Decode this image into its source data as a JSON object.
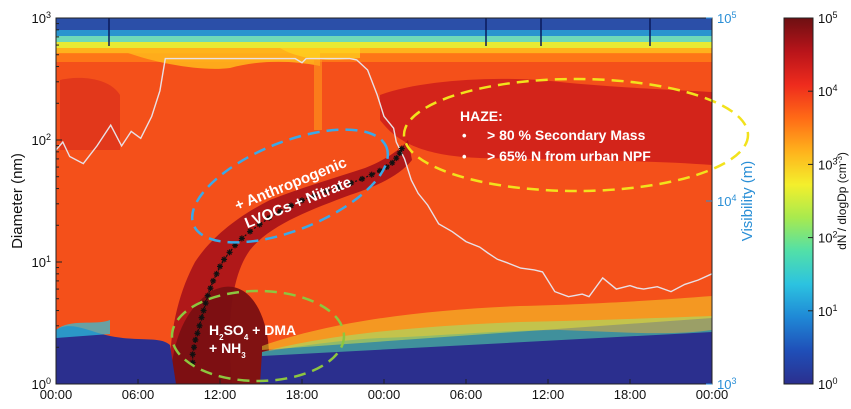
{
  "chart_data": {
    "type": "heatmap",
    "title": "",
    "xlabel": "",
    "ylabel": "Diameter  (nm)",
    "y2label": "Visibility (m)",
    "colorbar_label_html": "dN / dlogDp (cm<tspan baseline-shift=\"super\" font-size=\"8\">-3</tspan>)",
    "x_ticks": [
      "00:00",
      "06:00",
      "12:00",
      "18:00",
      "00:00",
      "06:00",
      "12:00",
      "18:00",
      "00:00"
    ],
    "x_range_hours": [
      0,
      48
    ],
    "y_scale": "log",
    "y_range_nm": [
      1,
      1000
    ],
    "y_ticks": [
      {
        "base": "10",
        "exp": "0",
        "value": 1
      },
      {
        "base": "10",
        "exp": "1",
        "value": 10
      },
      {
        "base": "10",
        "exp": "2",
        "value": 100
      },
      {
        "base": "10",
        "exp": "3",
        "value": 1000
      }
    ],
    "y2_scale": "log",
    "y2_range_m": [
      1000,
      100000
    ],
    "y2_ticks": [
      {
        "base": "10",
        "exp": "3",
        "value": 1000
      },
      {
        "base": "10",
        "exp": "4",
        "value": 10000
      },
      {
        "base": "10",
        "exp": "5",
        "value": 100000
      }
    ],
    "colorbar_scale": "log",
    "colorbar_range": [
      1,
      100000
    ],
    "colorbar_ticks": [
      {
        "base": "10",
        "exp": "0"
      },
      {
        "base": "10",
        "exp": "1"
      },
      {
        "base": "10",
        "exp": "2"
      },
      {
        "base": "10",
        "exp": "3"
      },
      {
        "base": "10",
        "exp": "4"
      },
      {
        "base": "10",
        "exp": "5"
      }
    ],
    "colormap": [
      "#2b2f8e",
      "#1f4fb8",
      "#1f88d6",
      "#2cc3e0",
      "#52e0a8",
      "#a8ea4e",
      "#f4ef2c",
      "#ffb21c",
      "#ff6a16",
      "#ee2b1d",
      "#b8141a",
      "#6e0f12"
    ],
    "visibility_color": "#e8e0e6",
    "growth_marker_color": "#111111",
    "visibility_series": {
      "hours": [
        0,
        0.5,
        1,
        2,
        3,
        4,
        4.8,
        5.5,
        6.2,
        7,
        7.6,
        8,
        8.5,
        9,
        10,
        11,
        12,
        13,
        14,
        15,
        16,
        17,
        17.5,
        18,
        18.3,
        19,
        20,
        21,
        21.5,
        22,
        22.8,
        23.5,
        24,
        24.7,
        24.9,
        25.5,
        26,
        26.5,
        27.2,
        28,
        29,
        30,
        31,
        31.6,
        32.3,
        33,
        34,
        35,
        35.6,
        36.5,
        37.5,
        38,
        38.5,
        39,
        40,
        41,
        42,
        42.5,
        43,
        44,
        45,
        46,
        47,
        48
      ],
      "visibility_m": [
        19000,
        21000,
        17500,
        16000,
        20000,
        26000,
        20000,
        24000,
        22000,
        29000,
        40000,
        60000,
        60000,
        60000,
        60000,
        60000,
        60000,
        60000,
        60000,
        60000,
        60000,
        60000,
        60000,
        57000,
        60000,
        60000,
        60000,
        60000,
        60000,
        59000,
        52000,
        38000,
        29000,
        25000,
        21000,
        17000,
        13000,
        11000,
        9500,
        7500,
        6800,
        6000,
        5600,
        5200,
        4800,
        4600,
        4300,
        4200,
        4100,
        3200,
        3000,
        3050,
        3100,
        3000,
        3800,
        3300,
        3450,
        3350,
        3300,
        3400,
        3200,
        3500,
        3700,
        4000
      ]
    },
    "growth_curve": {
      "hours": [
        10.0,
        10.0,
        10.1,
        10.2,
        10.35,
        10.5,
        10.65,
        10.8,
        10.95,
        11.1,
        11.3,
        11.5,
        11.75,
        12.0,
        12.3,
        12.7,
        13.1,
        13.6,
        14.2,
        14.9,
        15.6,
        16.4,
        17.2,
        18.0,
        18.9,
        19.8,
        20.7,
        21.6,
        22.4,
        23.1,
        23.7,
        24.2,
        24.6,
        24.9,
        25.15,
        25.3
      ],
      "diameter_nm": [
        1.5,
        1.75,
        2.0,
        2.3,
        2.6,
        3.0,
        3.5,
        4.0,
        4.6,
        5.3,
        6.1,
        7.0,
        8.0,
        9.2,
        10.5,
        12.0,
        13.7,
        15.6,
        17.8,
        20.3,
        23.0,
        26.0,
        29.0,
        32.0,
        35.0,
        38.0,
        41.0,
        44.5,
        48.0,
        52.0,
        56.0,
        60.0,
        65.0,
        71.0,
        78.0,
        85.0
      ]
    },
    "annotations": {
      "haze_title": "HAZE:",
      "haze_items": [
        "> 80 % Secondary Mass",
        "> 65% N from urban NPF"
      ],
      "bullet": "•",
      "anthro_line1": "+ Anthropogenic",
      "anthro_line2": "LVOCs + Nitrate",
      "nuc_line1_html": "H<tspan baseline-shift=\"sub\" font-size=\"8\">2</tspan>SO<tspan baseline-shift=\"sub\" font-size=\"8\">4</tspan> + DMA",
      "nuc_line2_html": "+ NH<tspan baseline-shift=\"sub\" font-size=\"8\">3</tspan>",
      "ellipse_colors": {
        "haze": "#f2e21c",
        "anthro": "#3aa9e8",
        "nuc": "#8dc63f"
      }
    }
  }
}
